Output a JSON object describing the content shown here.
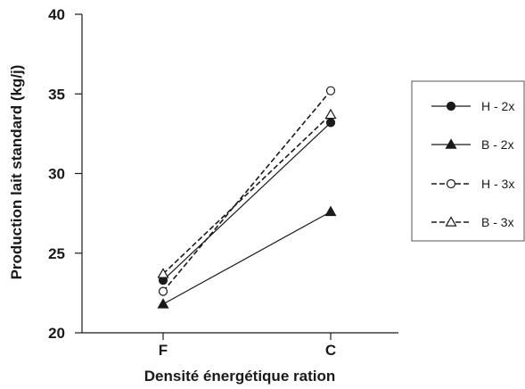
{
  "chart_data": {
    "type": "line",
    "xlabel": "Densité énergétique ration",
    "ylabel": "Production lait standard (kg/j)",
    "categories": [
      "F",
      "C"
    ],
    "ylim": [
      20,
      40
    ],
    "yticks": [
      20,
      25,
      30,
      35,
      40
    ],
    "grid": false,
    "legend_position": "right",
    "series": [
      {
        "name": "H - 2x",
        "values": [
          23.3,
          33.2
        ],
        "line_style": "solid",
        "marker": "filled-circle"
      },
      {
        "name": "B - 2x",
        "values": [
          21.8,
          27.6
        ],
        "line_style": "solid",
        "marker": "filled-triangle"
      },
      {
        "name": "H - 3x",
        "values": [
          22.6,
          35.2
        ],
        "line_style": "dashed",
        "marker": "open-circle"
      },
      {
        "name": "B - 3x",
        "values": [
          23.7,
          33.7
        ],
        "line_style": "dashed",
        "marker": "open-triangle"
      }
    ],
    "colors": {
      "line": "#1a1a1a",
      "background": "#ffffff"
    }
  }
}
